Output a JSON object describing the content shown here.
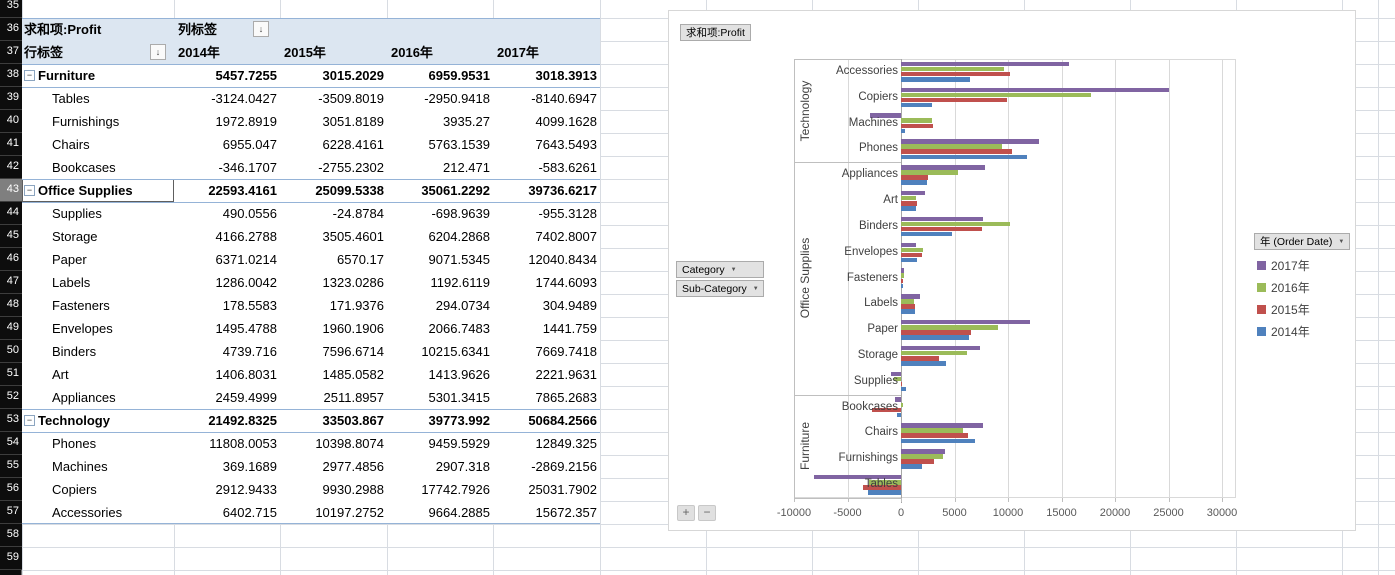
{
  "sheet": {
    "row_numbers": [
      "35",
      "36",
      "37",
      "38",
      "39",
      "40",
      "41",
      "42",
      "43",
      "44",
      "45",
      "46",
      "47",
      "48",
      "49",
      "50",
      "51",
      "52",
      "53",
      "54",
      "55",
      "56",
      "57",
      "58",
      "59"
    ],
    "active_row": "43"
  },
  "pivot": {
    "value_field": "求和项:Profit",
    "column_labels_header": "列标签",
    "row_labels_header": "行标签",
    "sort_icon": "↓",
    "year_columns": [
      "2014年",
      "2015年",
      "2016年",
      "2017年"
    ],
    "rows": [
      {
        "label": "Furniture",
        "bold": true,
        "values": [
          "5457.7255",
          "3015.2029",
          "6959.9531",
          "3018.3913"
        ]
      },
      {
        "label": "Tables",
        "bold": false,
        "values": [
          "-3124.0427",
          "-3509.8019",
          "-2950.9418",
          "-8140.6947"
        ]
      },
      {
        "label": "Furnishings",
        "bold": false,
        "values": [
          "1972.8919",
          "3051.8189",
          "3935.27",
          "4099.1628"
        ]
      },
      {
        "label": "Chairs",
        "bold": false,
        "values": [
          "6955.047",
          "6228.4161",
          "5763.1539",
          "7643.5493"
        ]
      },
      {
        "label": "Bookcases",
        "bold": false,
        "values": [
          "-346.1707",
          "-2755.2302",
          "212.471",
          "-583.6261"
        ]
      },
      {
        "label": "Office Supplies",
        "bold": true,
        "values": [
          "22593.4161",
          "25099.5338",
          "35061.2292",
          "39736.6217"
        ]
      },
      {
        "label": "Supplies",
        "bold": false,
        "values": [
          "490.0556",
          "-24.8784",
          "-698.9639",
          "-955.3128"
        ]
      },
      {
        "label": "Storage",
        "bold": false,
        "values": [
          "4166.2788",
          "3505.4601",
          "6204.2868",
          "7402.8007"
        ]
      },
      {
        "label": "Paper",
        "bold": false,
        "values": [
          "6371.0214",
          "6570.17",
          "9071.5345",
          "12040.8434"
        ]
      },
      {
        "label": "Labels",
        "bold": false,
        "values": [
          "1286.0042",
          "1323.0286",
          "1192.6119",
          "1744.6093"
        ]
      },
      {
        "label": "Fasteners",
        "bold": false,
        "values": [
          "178.5583",
          "171.9376",
          "294.0734",
          "304.9489"
        ]
      },
      {
        "label": "Envelopes",
        "bold": false,
        "values": [
          "1495.4788",
          "1960.1906",
          "2066.7483",
          "1441.759"
        ]
      },
      {
        "label": "Binders",
        "bold": false,
        "values": [
          "4739.716",
          "7596.6714",
          "10215.6341",
          "7669.7418"
        ]
      },
      {
        "label": "Art",
        "bold": false,
        "values": [
          "1406.8031",
          "1485.0582",
          "1413.9626",
          "2221.9631"
        ]
      },
      {
        "label": "Appliances",
        "bold": false,
        "values": [
          "2459.4999",
          "2511.8957",
          "5301.3415",
          "7865.2683"
        ]
      },
      {
        "label": "Technology",
        "bold": true,
        "values": [
          "21492.8325",
          "33503.867",
          "39773.992",
          "50684.2566"
        ]
      },
      {
        "label": "Phones",
        "bold": false,
        "values": [
          "11808.0053",
          "10398.8074",
          "9459.5929",
          "12849.325"
        ]
      },
      {
        "label": "Machines",
        "bold": false,
        "values": [
          "369.1689",
          "2977.4856",
          "2907.318",
          "-2869.2156"
        ]
      },
      {
        "label": "Copiers",
        "bold": false,
        "values": [
          "2912.9433",
          "9930.2988",
          "17742.7926",
          "25031.7902"
        ]
      },
      {
        "label": "Accessories",
        "bold": false,
        "values": [
          "6402.715",
          "10197.2752",
          "9664.2885",
          "15672.357"
        ]
      }
    ]
  },
  "chart": {
    "value_button": "求和项:Profit",
    "axis_buttons": [
      "Category",
      "Sub-Category"
    ],
    "legend_button": "年 (Order Date)",
    "zoom_buttons": [
      "+",
      "−"
    ],
    "colors": {
      "y2017": "#8064a2",
      "y2016": "#9bbb59",
      "y2015": "#c0504d",
      "y2014": "#4f81bd"
    }
  },
  "chart_data": {
    "type": "bar",
    "orientation": "horizontal",
    "title": "求和项:Profit",
    "xlim": [
      -10000,
      30000
    ],
    "x_ticks": [
      -10000,
      -5000,
      0,
      5000,
      10000,
      15000,
      20000,
      25000,
      30000
    ],
    "grid": true,
    "legend_position": "right",
    "groups": [
      {
        "name": "Technology",
        "count": 4
      },
      {
        "name": "Office Supplies",
        "count": 9
      },
      {
        "name": "Furniture",
        "count": 4
      }
    ],
    "categories_top_to_bottom": [
      "Accessories",
      "Copiers",
      "Machines",
      "Phones",
      "Appliances",
      "Art",
      "Binders",
      "Envelopes",
      "Fasteners",
      "Labels",
      "Paper",
      "Storage",
      "Supplies",
      "Bookcases",
      "Chairs",
      "Furnishings",
      "Tables"
    ],
    "series": [
      {
        "name": "2017年",
        "color": "#8064a2",
        "values": [
          15672.357,
          25031.7902,
          -2869.2156,
          12849.325,
          7865.2683,
          2221.9631,
          7669.7418,
          1441.759,
          304.9489,
          1744.6093,
          12040.8434,
          7402.8007,
          -955.3128,
          -583.6261,
          7643.5493,
          4099.1628,
          -8140.6947
        ]
      },
      {
        "name": "2016年",
        "color": "#9bbb59",
        "values": [
          9664.2885,
          17742.7926,
          2907.318,
          9459.5929,
          5301.3415,
          1413.9626,
          10215.6341,
          2066.7483,
          294.0734,
          1192.6119,
          9071.5345,
          6204.2868,
          -698.9639,
          212.471,
          5763.1539,
          3935.27,
          -2950.9418
        ]
      },
      {
        "name": "2015年",
        "color": "#c0504d",
        "values": [
          10197.2752,
          9930.2988,
          2977.4856,
          10398.8074,
          2511.8957,
          1485.0582,
          7596.6714,
          1960.1906,
          171.9376,
          1323.0286,
          6570.17,
          3505.4601,
          -24.8784,
          -2755.2302,
          6228.4161,
          3051.8189,
          -3509.8019
        ]
      },
      {
        "name": "2014年",
        "color": "#4f81bd",
        "values": [
          6402.715,
          2912.9433,
          369.1689,
          11808.0053,
          2459.4999,
          1406.8031,
          4739.716,
          1495.4788,
          178.5583,
          1286.0042,
          6371.0214,
          4166.2788,
          490.0556,
          -346.1707,
          6955.047,
          1972.8919,
          -3124.0427
        ]
      }
    ]
  }
}
